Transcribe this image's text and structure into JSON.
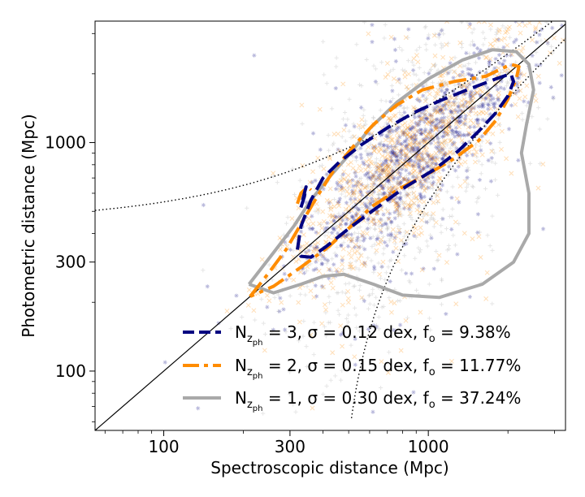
{
  "chart_data": {
    "type": "scatter",
    "title": "",
    "xlabel": "Spectroscopic distance (Mpc)",
    "ylabel": "Photometric distance (Mpc)",
    "xscale": "log",
    "yscale": "log",
    "xlim": [
      55,
      3300
    ],
    "ylim": [
      55,
      3400
    ],
    "x_ticks": [
      100,
      300,
      1000
    ],
    "x_tick_labels": [
      "100",
      "300",
      "1000"
    ],
    "y_ticks": [
      100,
      300,
      1000
    ],
    "y_tick_labels": [
      "100",
      "300",
      "1000"
    ],
    "grid": false,
    "legend_position": "bottom-right",
    "reference_lines": {
      "identity": "y = x",
      "outlier_bounds_dex": 0.5
    },
    "series": [
      {
        "name_prefix": "N",
        "name_subscript": "z",
        "name_subsubscript": "ph",
        "name_suffix": " = 3, σ = 0.12 dex, f",
        "name_f_sub": "o",
        "name_tail": " = 9.38%",
        "color": "#000080",
        "style": "dashed",
        "marker": "*",
        "contours": [
          [
            [
              320,
              340
            ],
            [
              330,
              430
            ],
            [
              360,
              560
            ],
            [
              400,
              700
            ],
            [
              460,
              820
            ],
            [
              560,
              980
            ],
            [
              700,
              1160
            ],
            [
              880,
              1350
            ],
            [
              1100,
              1520
            ],
            [
              1400,
              1700
            ],
            [
              1800,
              1900
            ],
            [
              2050,
              2000
            ],
            [
              2100,
              1850
            ],
            [
              2000,
              1600
            ],
            [
              1800,
              1350
            ],
            [
              1550,
              1120
            ],
            [
              1300,
              920
            ],
            [
              1050,
              760
            ],
            [
              820,
              640
            ],
            [
              640,
              520
            ],
            [
              500,
              420
            ],
            [
              410,
              350
            ],
            [
              360,
              315
            ],
            [
              330,
              318
            ],
            [
              320,
              340
            ]
          ],
          [
            [
              330,
              520
            ],
            [
              340,
              580
            ],
            [
              345,
              640
            ],
            [
              340,
              600
            ],
            [
              335,
              560
            ]
          ]
        ]
      },
      {
        "name_prefix": "N",
        "name_subscript": "z",
        "name_subsubscript": "ph",
        "name_suffix": " = 2, σ = 0.15 dex, f",
        "name_f_sub": "o",
        "name_tail": " = 11.77%",
        "color": "#ff8c00",
        "style": "dashdot",
        "marker": "x",
        "contours": [
          [
            [
              212,
              212
            ],
            [
              250,
              270
            ],
            [
              290,
              340
            ],
            [
              330,
              440
            ],
            [
              380,
              580
            ],
            [
              440,
              760
            ],
            [
              520,
              960
            ],
            [
              620,
              1200
            ],
            [
              760,
              1460
            ],
            [
              950,
              1700
            ],
            [
              1250,
              1850
            ],
            [
              1650,
              1950
            ],
            [
              2050,
              2200
            ],
            [
              2200,
              2150
            ],
            [
              2150,
              1900
            ],
            [
              2000,
              1550
            ],
            [
              1800,
              1250
            ],
            [
              1550,
              1020
            ],
            [
              1250,
              850
            ],
            [
              1000,
              730
            ],
            [
              780,
              630
            ],
            [
              620,
              530
            ],
            [
              510,
              430
            ],
            [
              420,
              350
            ],
            [
              330,
              285
            ],
            [
              260,
              235
            ],
            [
              212,
              212
            ]
          ],
          [
            [
              320,
              540
            ],
            [
              330,
              600
            ],
            [
              350,
              640
            ],
            [
              360,
              620
            ]
          ]
        ]
      },
      {
        "name_prefix": "N",
        "name_subscript": "z",
        "name_subsubscript": "ph",
        "name_suffix": " = 1, σ = 0.30 dex, f",
        "name_f_sub": "o",
        "name_tail": " = 37.24%",
        "color": "#a9a9a9",
        "style": "solid",
        "marker": "+",
        "contours": [
          [
            [
              210,
              240
            ],
            [
              260,
              330
            ],
            [
              310,
              430
            ],
            [
              360,
              560
            ],
            [
              420,
              700
            ],
            [
              500,
              880
            ],
            [
              600,
              1150
            ],
            [
              760,
              1500
            ],
            [
              1000,
              1900
            ],
            [
              1350,
              2300
            ],
            [
              1750,
              2550
            ],
            [
              2150,
              2500
            ],
            [
              2400,
              2200
            ],
            [
              2500,
              1700
            ],
            [
              2350,
              1200
            ],
            [
              2250,
              900
            ],
            [
              2400,
              600
            ],
            [
              2400,
              400
            ],
            [
              2100,
              300
            ],
            [
              1600,
              240
            ],
            [
              1100,
              210
            ],
            [
              800,
              215
            ],
            [
              620,
              240
            ],
            [
              480,
              265
            ],
            [
              400,
              260
            ],
            [
              330,
              240
            ],
            [
              260,
              220
            ],
            [
              210,
              240
            ]
          ]
        ]
      }
    ]
  }
}
